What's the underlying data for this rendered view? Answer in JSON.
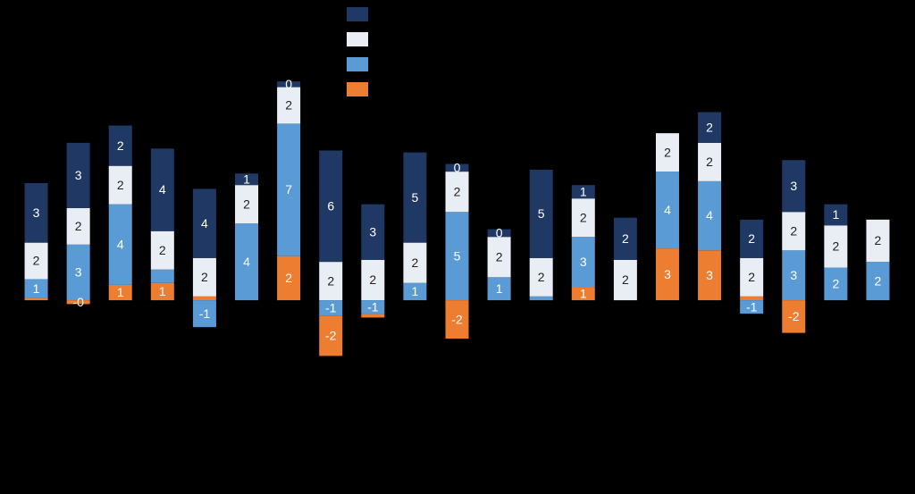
{
  "chart_data": {
    "type": "bar",
    "stacked": true,
    "ylim": [
      -10,
      15.5
    ],
    "series": [
      {
        "color": "#ed7d31",
        "values": [
          0.1,
          -0.2,
          0.8,
          0.9,
          0.2,
          0,
          2.3,
          -2.1,
          -0.2,
          0,
          -2.0,
          0,
          0,
          0.7,
          0,
          2.7,
          2.6,
          0.2,
          -1.7,
          0,
          0
        ],
        "value_labels": [
          null,
          "-0",
          "1",
          "1",
          null,
          null,
          "2",
          "-2",
          null,
          null,
          "-2",
          null,
          null,
          "1",
          null,
          "3",
          "3",
          null,
          "-2",
          null,
          null
        ]
      },
      {
        "color": "#5b9bd5",
        "values": [
          1.0,
          2.9,
          4.2,
          0.7,
          -1.4,
          4.0,
          6.9,
          -0.8,
          -0.7,
          0.9,
          4.6,
          1.2,
          0.2,
          2.6,
          0,
          4.0,
          3.6,
          -0.7,
          2.6,
          1.7,
          2.0
        ],
        "value_labels": [
          "1",
          "3",
          "4",
          null,
          "-1",
          "4",
          "7",
          "-1",
          "-1",
          "1",
          "5",
          "1",
          null,
          "3",
          null,
          "4",
          "4",
          "-1",
          "3",
          "2",
          "2"
        ]
      },
      {
        "color": "#e9edf4",
        "values": [
          1.9,
          1.9,
          2.0,
          2.0,
          2.0,
          2.0,
          1.9,
          2.0,
          2.1,
          2.1,
          2.1,
          2.1,
          2.0,
          2.0,
          2.1,
          2.0,
          2.0,
          2.0,
          2.0,
          2.2,
          2.2
        ],
        "value_labels": [
          "2",
          "2",
          "2",
          "2",
          "2",
          "2",
          "2",
          "2",
          "2",
          "2",
          "2",
          "2",
          "2",
          "2",
          "2",
          "2",
          "2",
          "2",
          "2",
          "2",
          "2"
        ]
      },
      {
        "color": "#203864",
        "values": [
          3.1,
          3.4,
          2.1,
          4.3,
          3.6,
          0.6,
          0.3,
          5.8,
          2.9,
          4.7,
          0.4,
          0.4,
          4.6,
          0.7,
          2.2,
          0,
          1.6,
          2.0,
          2.7,
          1.1,
          0
        ],
        "value_labels": [
          "3",
          "3",
          "2",
          "4",
          "4",
          "1",
          "0",
          "6",
          "3",
          "5",
          "0",
          "0",
          "5",
          "1",
          "2",
          null,
          "2",
          "2",
          "3",
          "1",
          null
        ]
      }
    ]
  }
}
